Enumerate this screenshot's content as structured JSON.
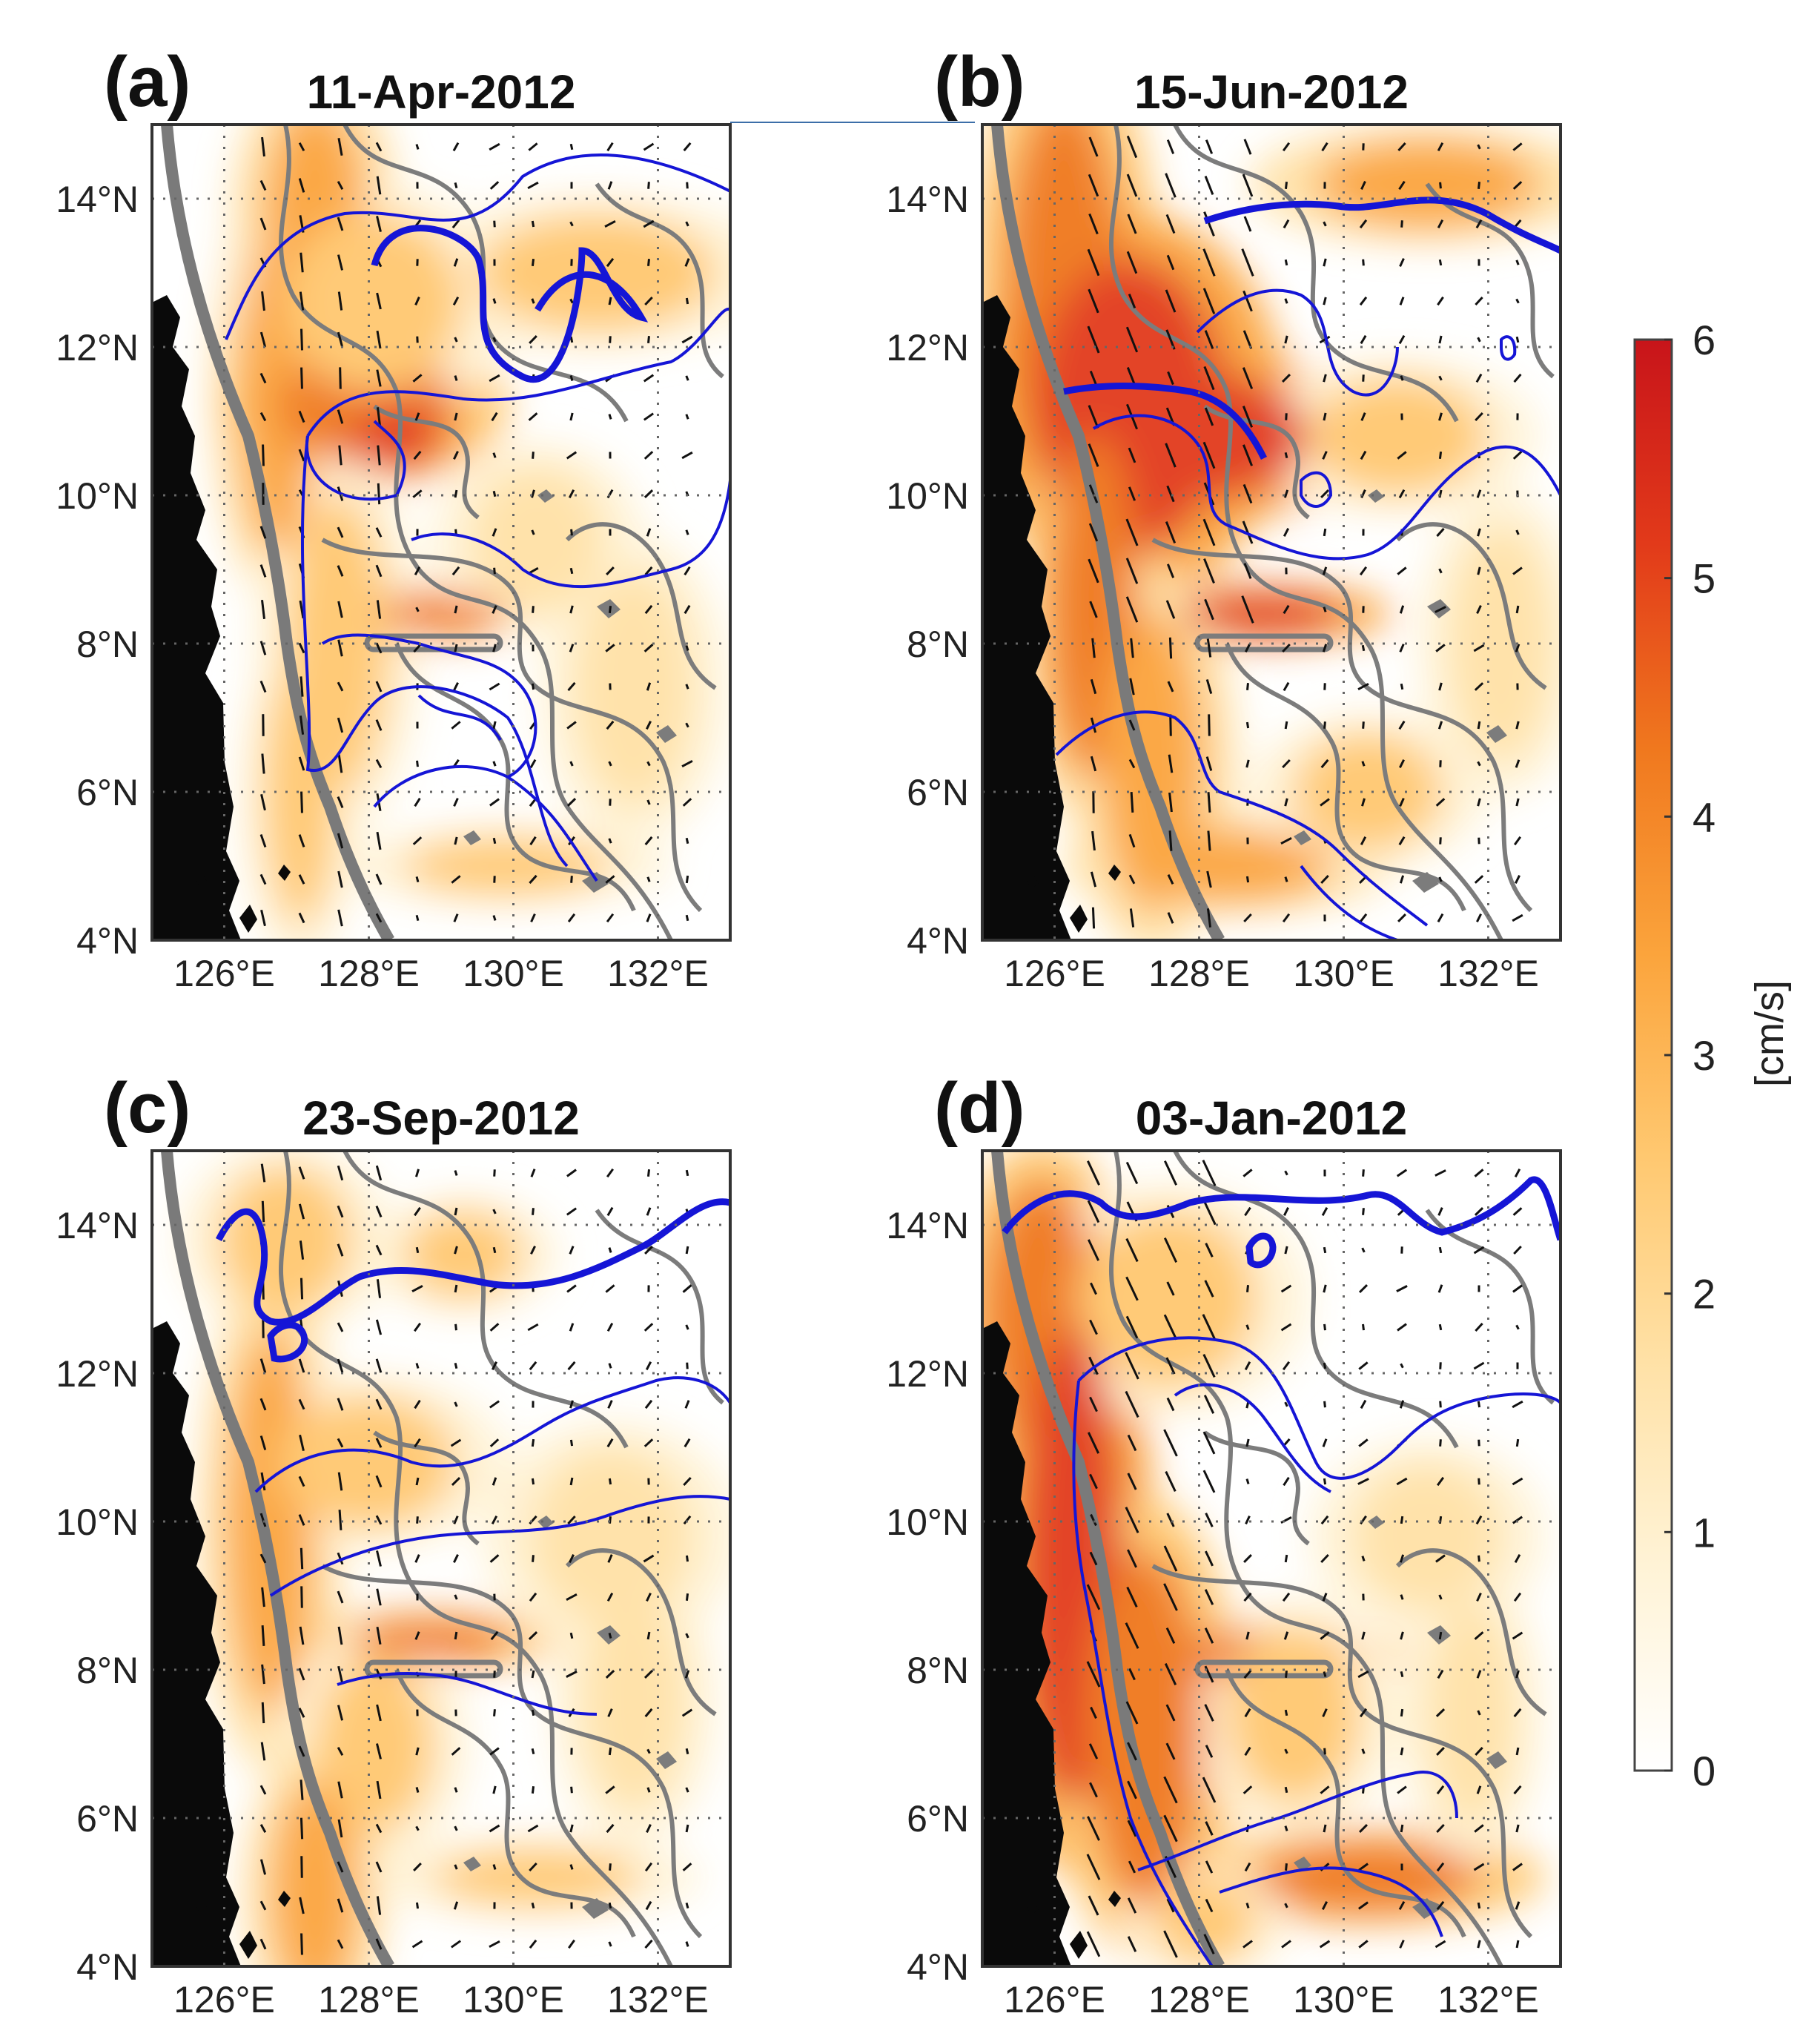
{
  "figure": {
    "panels": [
      {
        "id": "a",
        "letter": "(a)",
        "date": "11-Apr-2012"
      },
      {
        "id": "b",
        "letter": "(b)",
        "date": "15-Jun-2012"
      },
      {
        "id": "c",
        "letter": "(c)",
        "date": "23-Sep-2012"
      },
      {
        "id": "d",
        "letter": "(d)",
        "date": "03-Jan-2012"
      }
    ],
    "lat_ticks": [
      "4°N",
      "6°N",
      "8°N",
      "10°N",
      "12°N",
      "14°N"
    ],
    "lon_ticks": [
      "126°E",
      "128°E",
      "130°E",
      "132°E"
    ],
    "colorbar": {
      "unit": "[cm/s]",
      "ticks": [
        "0",
        "1",
        "2",
        "3",
        "4",
        "5",
        "6"
      ],
      "min": 0,
      "max": 6,
      "colors": [
        "#ffffff",
        "#fff3d6",
        "#ffe1a6",
        "#ffc870",
        "#fba43c",
        "#f0781e",
        "#e23a1a",
        "#c8141a"
      ]
    }
  }
}
